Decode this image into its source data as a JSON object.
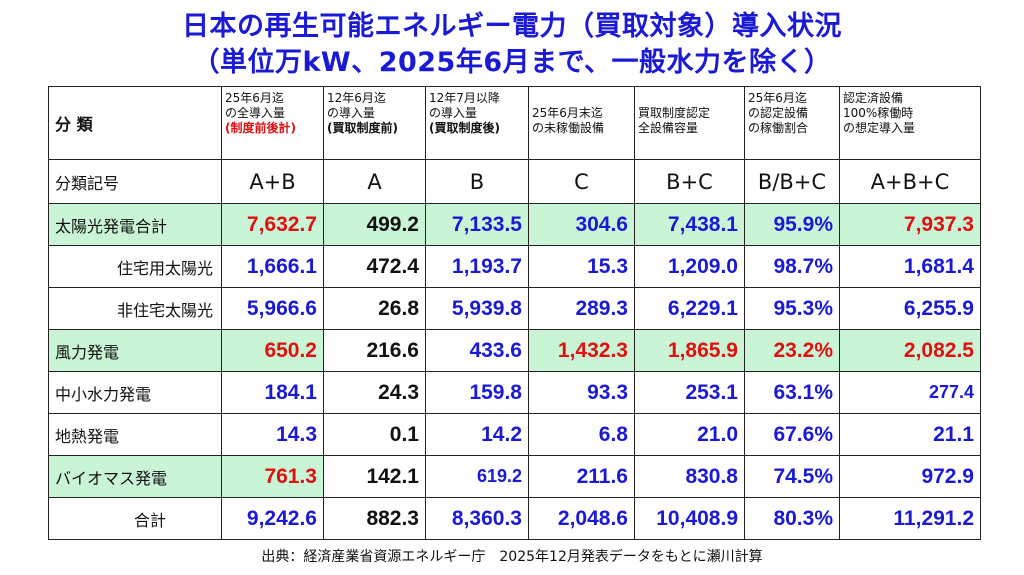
{
  "title_line1": "日本の再生可能エネルギー電力（買取対象）導入状況",
  "title_line2": "（単位万kW、2025年6月まで、一般水力を除く）",
  "header": {
    "category": "分 類",
    "col1": [
      "25年6月迄",
      "の全導入量",
      "(制度前後計)"
    ],
    "col2": [
      "12年6月迄",
      "の導入量",
      "(買取制度前)"
    ],
    "col3": [
      "12年7月以降",
      "の導入量",
      "(買取制度後)"
    ],
    "col4": [
      "",
      "25年6月末迄",
      "の未稼働設備"
    ],
    "col5": [
      "",
      "買取制度認定",
      "全設備容量"
    ],
    "col6": [
      "25年6月迄",
      "の認定設備",
      "の稼働割合"
    ],
    "col7": [
      "認定済設備",
      "100%稼働時",
      "の想定導入量"
    ]
  },
  "symbol_row": {
    "label": "分類記号",
    "values": [
      "A+B",
      "A",
      "B",
      "C",
      "B+C",
      "B/B+C",
      "A+B+C"
    ]
  },
  "rows": [
    {
      "label": "太陽光発電合計",
      "values": [
        "7,632.7",
        "499.2",
        "7,133.5",
        "304.6",
        "7,438.1",
        "95.9%",
        "7,937.3"
      ]
    },
    {
      "label": "住宅用太陽光",
      "values": [
        "1,666.1",
        "472.4",
        "1,193.7",
        "15.3",
        "1,209.0",
        "98.7%",
        "1,681.4"
      ]
    },
    {
      "label": "非住宅太陽光",
      "values": [
        "5,966.6",
        "26.8",
        "5,939.8",
        "289.3",
        "6,229.1",
        "95.3%",
        "6,255.9"
      ]
    },
    {
      "label": "風力発電",
      "values": [
        "650.2",
        "216.6",
        "433.6",
        "1,432.3",
        "1,865.9",
        "23.2%",
        "2,082.5"
      ]
    },
    {
      "label": "中小水力発電",
      "values": [
        "184.1",
        "24.3",
        "159.8",
        "93.3",
        "253.1",
        "63.1%",
        "277.4"
      ]
    },
    {
      "label": "地熱発電",
      "values": [
        "14.3",
        "0.1",
        "14.2",
        "6.8",
        "21.0",
        "67.6%",
        "21.1"
      ]
    },
    {
      "label": "バイオマス発電",
      "values": [
        "761.3",
        "142.1",
        "619.2",
        "211.6",
        "830.8",
        "74.5%",
        "972.9"
      ]
    },
    {
      "label": "合計",
      "values": [
        "9,242.6",
        "882.3",
        "8,360.3",
        "2,048.6",
        "10,408.9",
        "80.3%",
        "11,291.2"
      ]
    }
  ],
  "colors": {
    "blue": "#1a1ad6",
    "red": "#e01010",
    "black": "#111111",
    "green": "#c9f5d6"
  },
  "source": "出典：経済産業省資源エネルギー庁　2025年12月発表データをもとに瀬川計算"
}
